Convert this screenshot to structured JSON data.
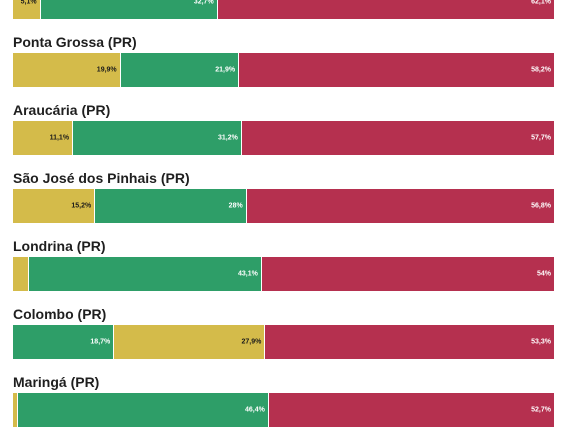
{
  "chart_data": {
    "type": "bar",
    "orientation": "horizontal",
    "stacked": true,
    "normalized": true,
    "legend": "none",
    "grid": false,
    "xlim": [
      0,
      100
    ],
    "unit": "%",
    "colors": {
      "yellow": "#d4bb4a",
      "green": "#2e9e68",
      "red": "#b5304f"
    },
    "rows": [
      {
        "title": "",
        "segments": [
          {
            "value": 5.1,
            "label": "5,1%",
            "color": "yellow"
          },
          {
            "value": 32.7,
            "label": "32,7%",
            "color": "green"
          },
          {
            "value": 62.1,
            "label": "62,1%",
            "color": "red"
          }
        ]
      },
      {
        "title": "Ponta Grossa (PR)",
        "segments": [
          {
            "value": 19.9,
            "label": "19,9%",
            "color": "yellow"
          },
          {
            "value": 21.9,
            "label": "21,9%",
            "color": "green"
          },
          {
            "value": 58.2,
            "label": "58,2%",
            "color": "red"
          }
        ]
      },
      {
        "title": "Araucária (PR)",
        "segments": [
          {
            "value": 11.1,
            "label": "11,1%",
            "color": "yellow"
          },
          {
            "value": 31.2,
            "label": "31,2%",
            "color": "green"
          },
          {
            "value": 57.7,
            "label": "57,7%",
            "color": "red"
          }
        ]
      },
      {
        "title": "São José dos Pinhais (PR)",
        "segments": [
          {
            "value": 15.2,
            "label": "15,2%",
            "color": "yellow"
          },
          {
            "value": 28,
            "label": "28%",
            "color": "green"
          },
          {
            "value": 56.8,
            "label": "56,8%",
            "color": "red"
          }
        ]
      },
      {
        "title": "Londrina (PR)",
        "segments": [
          {
            "value": 2.9,
            "label": "",
            "color": "yellow"
          },
          {
            "value": 43.1,
            "label": "43,1%",
            "color": "green"
          },
          {
            "value": 54,
            "label": "54%",
            "color": "red"
          }
        ]
      },
      {
        "title": "Colombo (PR)",
        "segments": [
          {
            "value": 18.7,
            "label": "18,7%",
            "color": "green"
          },
          {
            "value": 27.9,
            "label": "27,9%",
            "color": "yellow"
          },
          {
            "value": 53.3,
            "label": "53,3%",
            "color": "red"
          }
        ]
      },
      {
        "title": "Maringá (PR)",
        "segments": [
          {
            "value": 0.9,
            "label": "",
            "color": "yellow"
          },
          {
            "value": 46.4,
            "label": "46,4%",
            "color": "green"
          },
          {
            "value": 52.7,
            "label": "52,7%",
            "color": "red"
          }
        ]
      }
    ]
  }
}
